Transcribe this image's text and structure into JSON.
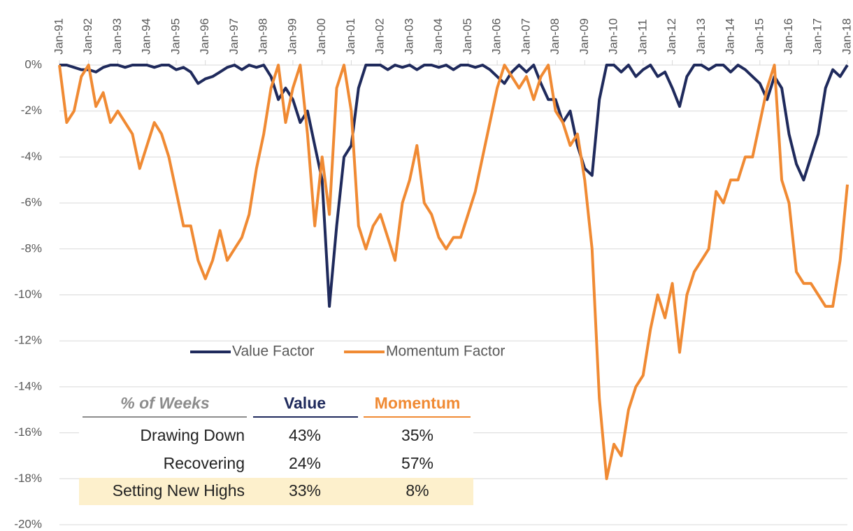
{
  "chart_data": {
    "type": "line",
    "x": [
      1991,
      1991.25,
      1991.5,
      1991.75,
      1992,
      1992.25,
      1992.5,
      1992.75,
      1993,
      1993.25,
      1993.5,
      1993.75,
      1994,
      1994.25,
      1994.5,
      1994.75,
      1995,
      1995.25,
      1995.5,
      1995.75,
      1996,
      1996.25,
      1996.5,
      1996.75,
      1997,
      1997.25,
      1997.5,
      1997.75,
      1998,
      1998.25,
      1998.5,
      1998.75,
      1999,
      1999.25,
      1999.5,
      1999.75,
      2000,
      2000.25,
      2000.5,
      2000.75,
      2001,
      2001.25,
      2001.5,
      2001.75,
      2002,
      2002.25,
      2002.5,
      2002.75,
      2003,
      2003.25,
      2003.5,
      2003.75,
      2004,
      2004.25,
      2004.5,
      2004.75,
      2005,
      2005.25,
      2005.5,
      2005.75,
      2006,
      2006.25,
      2006.5,
      2006.75,
      2007,
      2007.25,
      2007.5,
      2007.75,
      2008,
      2008.25,
      2008.5,
      2008.75,
      2009,
      2009.25,
      2009.5,
      2009.75,
      2010,
      2010.25,
      2010.5,
      2010.75,
      2011,
      2011.25,
      2011.5,
      2011.75,
      2012,
      2012.25,
      2012.5,
      2012.75,
      2013,
      2013.25,
      2013.5,
      2013.75,
      2014,
      2014.25,
      2014.5,
      2014.75,
      2015,
      2015.25,
      2015.5,
      2015.75,
      2016,
      2016.25,
      2016.5,
      2016.75,
      2017,
      2017.25,
      2017.5,
      2017.75,
      2018
    ],
    "series": [
      {
        "name": "Value Factor",
        "color": "#1f2a5c",
        "values": [
          0,
          0,
          -0.1,
          -0.2,
          -0.2,
          -0.3,
          -0.1,
          0,
          0,
          -0.1,
          0,
          0,
          0,
          -0.1,
          0,
          0,
          -0.2,
          -0.1,
          -0.3,
          -0.8,
          -0.6,
          -0.5,
          -0.3,
          -0.1,
          0,
          -0.2,
          0,
          -0.1,
          0,
          -0.5,
          -1.5,
          -1,
          -1.5,
          -2.5,
          -2,
          -3.5,
          -5,
          -10.5,
          -7,
          -4,
          -3.5,
          -1,
          0,
          0,
          0,
          -0.2,
          0,
          -0.1,
          0,
          -0.2,
          0,
          0,
          -0.1,
          0,
          -0.2,
          0,
          0,
          -0.1,
          0,
          -0.2,
          -0.5,
          -0.8,
          -0.3,
          0,
          -0.3,
          0,
          -0.8,
          -1.5,
          -1.5,
          -2.5,
          -2,
          -3.5,
          -4.5,
          -4.8,
          -1.5,
          0,
          0,
          -0.3,
          0,
          -0.5,
          -0.2,
          0,
          -0.5,
          -0.3,
          -1,
          -1.8,
          -0.5,
          0,
          0,
          -0.2,
          0,
          0,
          -0.3,
          0,
          -0.2,
          -0.5,
          -0.8,
          -1.5,
          -0.5,
          -1,
          -3,
          -4.3,
          -5,
          -4,
          -3,
          -1,
          -0.2,
          -0.5,
          0
        ]
      },
      {
        "name": "Momentum Factor",
        "color": "#f08a33",
        "values": [
          0,
          -2.5,
          -2,
          -0.5,
          0,
          -1.8,
          -1.2,
          -2.5,
          -2,
          -2.5,
          -3,
          -4.5,
          -3.5,
          -2.5,
          -3,
          -4,
          -5.5,
          -7,
          -7,
          -8.5,
          -9.3,
          -8.5,
          -7.2,
          -8.5,
          -8,
          -7.5,
          -6.5,
          -4.5,
          -3,
          -1,
          0,
          -2.5,
          -1,
          0,
          -3,
          -7,
          -4,
          -6.5,
          -1,
          0,
          -2,
          -7,
          -8,
          -7,
          -6.5,
          -7.5,
          -8.5,
          -6,
          -5,
          -3.5,
          -6,
          -6.5,
          -7.5,
          -8,
          -7.5,
          -7.5,
          -6.5,
          -5.5,
          -4,
          -2.5,
          -1,
          0,
          -0.5,
          -1,
          -0.5,
          -1.5,
          -0.5,
          0,
          -2,
          -2.5,
          -3.5,
          -3,
          -5,
          -8,
          -14.5,
          -18,
          -16.5,
          -17,
          -15,
          -14,
          -13.5,
          -11.5,
          -10,
          -11,
          -9.5,
          -12.5,
          -10,
          -9,
          -8.5,
          -8,
          -5.5,
          -6,
          -5,
          -5,
          -4,
          -4,
          -2.5,
          -1,
          0,
          -5,
          -6,
          -9,
          -9.5,
          -9.5,
          -10,
          -10.5,
          -10.5,
          -8.5,
          -5.2
        ]
      }
    ],
    "xlim": [
      1991,
      2018
    ],
    "xticks": [
      {
        "value": 1991,
        "label": "Jan-91"
      },
      {
        "value": 1992,
        "label": "Jan-92"
      },
      {
        "value": 1993,
        "label": "Jan-93"
      },
      {
        "value": 1994,
        "label": "Jan-94"
      },
      {
        "value": 1995,
        "label": "Jan-95"
      },
      {
        "value": 1996,
        "label": "Jan-96"
      },
      {
        "value": 1997,
        "label": "Jan-97"
      },
      {
        "value": 1998,
        "label": "Jan-98"
      },
      {
        "value": 1999,
        "label": "Jan-99"
      },
      {
        "value": 2000,
        "label": "Jan-00"
      },
      {
        "value": 2001,
        "label": "Jan-01"
      },
      {
        "value": 2002,
        "label": "Jan-02"
      },
      {
        "value": 2003,
        "label": "Jan-03"
      },
      {
        "value": 2004,
        "label": "Jan-04"
      },
      {
        "value": 2005,
        "label": "Jan-05"
      },
      {
        "value": 2006,
        "label": "Jan-06"
      },
      {
        "value": 2007,
        "label": "Jan-07"
      },
      {
        "value": 2008,
        "label": "Jan-08"
      },
      {
        "value": 2009,
        "label": "Jan-09"
      },
      {
        "value": 2010,
        "label": "Jan-10"
      },
      {
        "value": 2011,
        "label": "Jan-11"
      },
      {
        "value": 2012,
        "label": "Jan-12"
      },
      {
        "value": 2013,
        "label": "Jan-13"
      },
      {
        "value": 2014,
        "label": "Jan-14"
      },
      {
        "value": 2015,
        "label": "Jan-15"
      },
      {
        "value": 2016,
        "label": "Jan-16"
      },
      {
        "value": 2017,
        "label": "Jan-17"
      },
      {
        "value": 2018,
        "label": "Jan-18"
      }
    ],
    "ylim": [
      -20,
      0
    ],
    "yticks": [
      {
        "value": 0,
        "label": "0%"
      },
      {
        "value": -2,
        "label": "-2%"
      },
      {
        "value": -4,
        "label": "-4%"
      },
      {
        "value": -6,
        "label": "-6%"
      },
      {
        "value": -8,
        "label": "-8%"
      },
      {
        "value": -10,
        "label": "-10%"
      },
      {
        "value": -12,
        "label": "-12%"
      },
      {
        "value": -14,
        "label": "-14%"
      },
      {
        "value": -16,
        "label": "-16%"
      },
      {
        "value": -18,
        "label": "-18%"
      },
      {
        "value": -20,
        "label": "-20%"
      }
    ],
    "grid": true
  },
  "table": {
    "header": [
      "% of Weeks",
      "Value",
      "Momentum"
    ],
    "rows": [
      [
        "Drawing Down",
        "43%",
        "35%"
      ],
      [
        "Recovering",
        "24%",
        "57%"
      ],
      [
        "Setting New Highs",
        "33%",
        "8%"
      ]
    ]
  }
}
